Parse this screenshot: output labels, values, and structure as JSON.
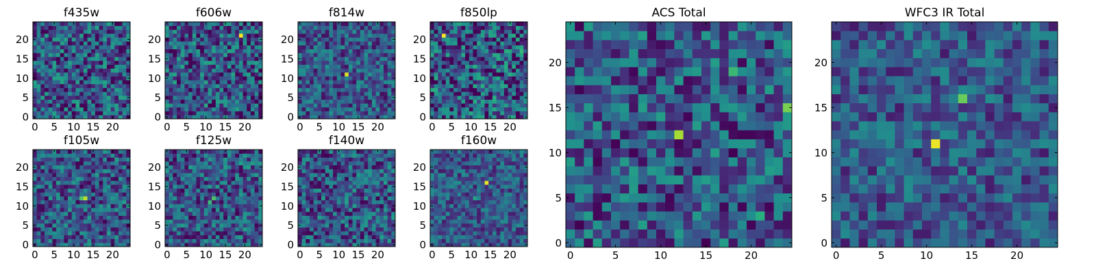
{
  "figure": {
    "colormap": "viridis",
    "colors": {
      "viridis_low": "#440154",
      "viridis_mid": "#21918c",
      "viridis_high": "#fde725",
      "frame": "#000000"
    }
  },
  "chart_data": [
    {
      "type": "heatmap",
      "title": "f435w",
      "grid_size": 25,
      "x_ticks": [
        0,
        5,
        10,
        15,
        20
      ],
      "y_ticks": [
        0,
        5,
        10,
        15,
        20
      ],
      "xlim": [
        -0.5,
        24.5
      ],
      "ylim": [
        -0.5,
        24.5
      ],
      "seed": 435,
      "noise": 0.45,
      "hotspots": []
    },
    {
      "type": "heatmap",
      "title": "f606w",
      "grid_size": 25,
      "x_ticks": [
        0,
        5,
        10,
        15,
        20
      ],
      "y_ticks": [
        0,
        5,
        10,
        15,
        20
      ],
      "xlim": [
        -0.5,
        24.5
      ],
      "ylim": [
        -0.5,
        24.5
      ],
      "seed": 606,
      "noise": 0.45,
      "hotspots": [
        [
          19,
          21,
          0.55
        ]
      ]
    },
    {
      "type": "heatmap",
      "title": "f814w",
      "grid_size": 25,
      "x_ticks": [
        0,
        5,
        10,
        15,
        20
      ],
      "y_ticks": [
        0,
        5,
        10,
        15,
        20
      ],
      "xlim": [
        -0.5,
        24.5
      ],
      "ylim": [
        -0.5,
        24.5
      ],
      "seed": 814,
      "noise": 0.35,
      "hotspots": [
        [
          12,
          11,
          0.5
        ]
      ]
    },
    {
      "type": "heatmap",
      "title": "f850lp",
      "grid_size": 25,
      "x_ticks": [
        0,
        5,
        10,
        15,
        20
      ],
      "y_ticks": [
        0,
        5,
        10,
        15,
        20
      ],
      "xlim": [
        -0.5,
        24.5
      ],
      "ylim": [
        -0.5,
        24.5
      ],
      "seed": 850,
      "noise": 0.5,
      "hotspots": [
        [
          3,
          21,
          0.5
        ],
        [
          23,
          17,
          0.4
        ]
      ]
    },
    {
      "type": "heatmap",
      "title": "f105w",
      "grid_size": 25,
      "x_ticks": [
        0,
        5,
        10,
        15,
        20
      ],
      "y_ticks": [
        0,
        5,
        10,
        15,
        20
      ],
      "xlim": [
        -0.5,
        24.5
      ],
      "ylim": [
        -0.5,
        24.5
      ],
      "seed": 105,
      "noise": 0.4,
      "hotspots": [
        [
          12,
          12,
          0.45
        ],
        [
          13,
          12,
          0.35
        ]
      ]
    },
    {
      "type": "heatmap",
      "title": "f125w",
      "grid_size": 25,
      "x_ticks": [
        0,
        5,
        10,
        15,
        20
      ],
      "y_ticks": [
        0,
        5,
        10,
        15,
        20
      ],
      "xlim": [
        -0.5,
        24.5
      ],
      "ylim": [
        -0.5,
        24.5
      ],
      "seed": 125,
      "noise": 0.4,
      "hotspots": [
        [
          12,
          12,
          0.45
        ],
        [
          11,
          11,
          0.35
        ]
      ]
    },
    {
      "type": "heatmap",
      "title": "f140w",
      "grid_size": 25,
      "x_ticks": [
        0,
        5,
        10,
        15,
        20
      ],
      "y_ticks": [
        0,
        5,
        10,
        15,
        20
      ],
      "xlim": [
        -0.5,
        24.5
      ],
      "ylim": [
        -0.5,
        24.5
      ],
      "seed": 140,
      "noise": 0.4,
      "hotspots": [
        [
          12,
          11,
          0.45
        ]
      ]
    },
    {
      "type": "heatmap",
      "title": "f160w",
      "grid_size": 25,
      "x_ticks": [
        0,
        5,
        10,
        15,
        20
      ],
      "y_ticks": [
        0,
        5,
        10,
        15,
        20
      ],
      "xlim": [
        -0.5,
        24.5
      ],
      "ylim": [
        -0.5,
        24.5
      ],
      "seed": 160,
      "noise": 0.3,
      "hotspots": [
        [
          14,
          16,
          0.6
        ],
        [
          11,
          12,
          0.4
        ]
      ]
    },
    {
      "type": "heatmap",
      "title": "ACS Total",
      "grid_size": 25,
      "x_ticks": [
        0,
        5,
        10,
        15,
        20
      ],
      "y_ticks": [
        0,
        5,
        10,
        15,
        20
      ],
      "xlim": [
        -0.5,
        24.5
      ],
      "ylim": [
        -0.5,
        24.5
      ],
      "seed": 900,
      "noise": 0.4,
      "hotspots": [
        [
          12,
          12,
          0.6
        ],
        [
          21,
          3,
          0.5
        ],
        [
          18,
          19,
          0.35
        ],
        [
          24,
          15,
          0.3
        ]
      ]
    },
    {
      "type": "heatmap",
      "title": "WFC3 IR Total",
      "grid_size": 25,
      "x_ticks": [
        0,
        5,
        10,
        15,
        20
      ],
      "y_ticks": [
        0,
        5,
        10,
        15,
        20
      ],
      "xlim": [
        -0.5,
        24.5
      ],
      "ylim": [
        -0.5,
        24.5
      ],
      "seed": 901,
      "noise": 0.3,
      "hotspots": [
        [
          11,
          11,
          0.65
        ],
        [
          14,
          16,
          0.45
        ],
        [
          12,
          12,
          0.35
        ],
        [
          13,
          12,
          0.3
        ]
      ]
    }
  ]
}
